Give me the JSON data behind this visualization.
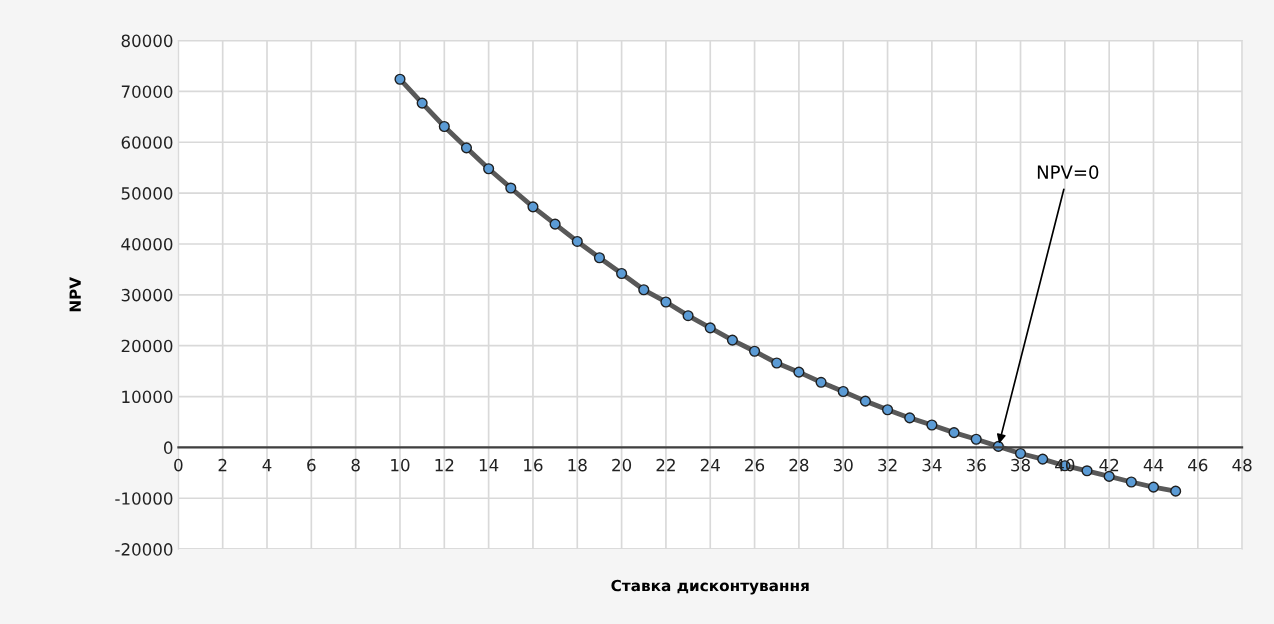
{
  "chart_data": {
    "type": "line",
    "xlabel": "Ставка дисконтування",
    "ylabel": "NPV",
    "x": [
      10,
      11,
      12,
      13,
      14,
      15,
      16,
      17,
      18,
      19,
      20,
      21,
      22,
      23,
      24,
      25,
      26,
      27,
      28,
      29,
      30,
      31,
      32,
      33,
      34,
      35,
      36,
      37,
      38,
      39,
      40,
      41,
      42,
      43,
      44,
      45
    ],
    "series": [
      {
        "color": "#5b9bd5",
        "values": [
          72400,
          67700,
          63100,
          58900,
          54800,
          51000,
          47300,
          43900,
          40500,
          37300,
          34200,
          31000,
          28600,
          25900,
          23500,
          21100,
          18900,
          16600,
          14800,
          12800,
          11000,
          9100,
          7400,
          5800,
          4400,
          2900,
          1600,
          200,
          -1200,
          -2300,
          -3600,
          -4600,
          -5700,
          -6800,
          -7800,
          -8600
        ]
      }
    ],
    "xlim": [
      0,
      48
    ],
    "xticks": [
      0,
      2,
      4,
      6,
      8,
      10,
      12,
      14,
      16,
      18,
      20,
      22,
      24,
      26,
      28,
      30,
      32,
      34,
      36,
      38,
      40,
      42,
      44,
      46,
      48
    ],
    "ylim": [
      -20000,
      80000
    ],
    "yticks": [
      -20000,
      -10000,
      0,
      10000,
      20000,
      30000,
      40000,
      50000,
      60000,
      70000,
      80000
    ],
    "grid": true,
    "marker": "circle",
    "line_style": "solid",
    "legend": false,
    "annotations": [
      {
        "text": "NPV=0",
        "x": 37,
        "y": 200
      }
    ]
  }
}
